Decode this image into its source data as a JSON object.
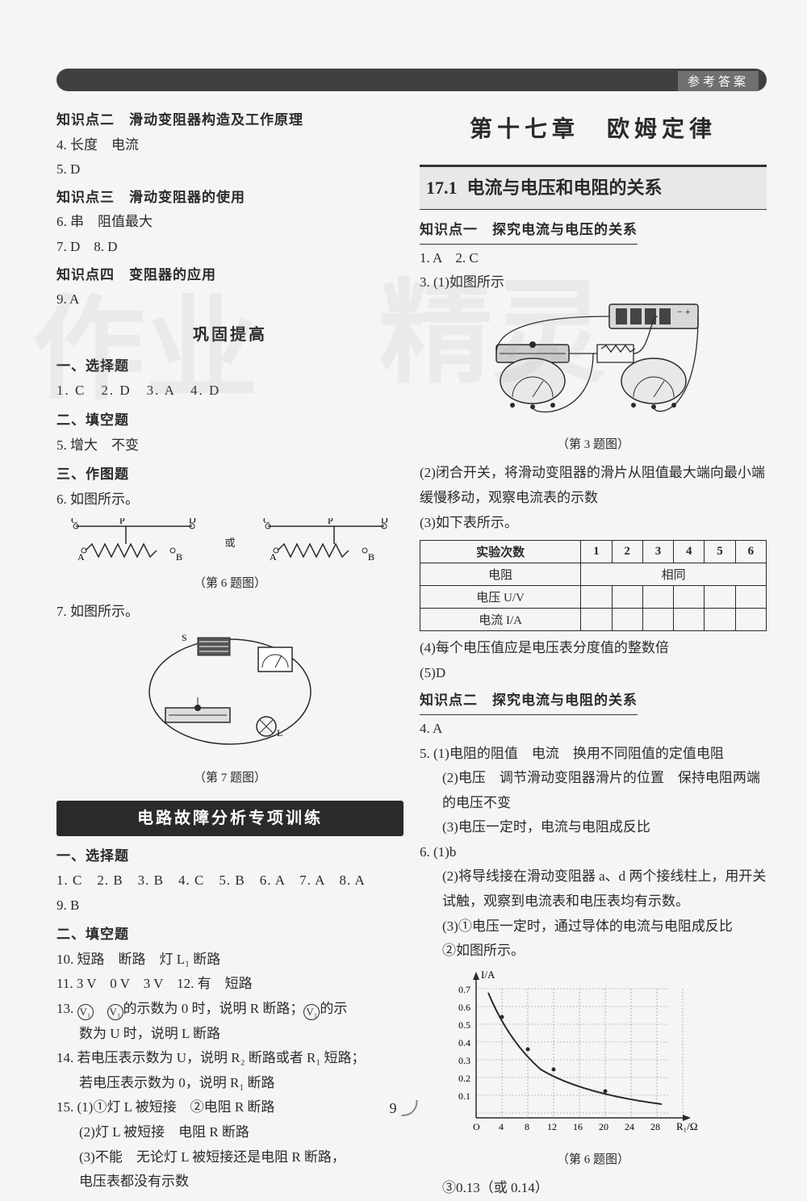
{
  "header": {
    "label": "参考答案"
  },
  "page_number": "9",
  "left": {
    "kp2": {
      "title": "知识点二　滑动变阻器构造及工作原理",
      "a4": "4. 长度　电流",
      "a5": "5. D"
    },
    "kp3": {
      "title": "知识点三　滑动变阻器的使用",
      "a6": "6. 串　阻值最大",
      "a78": "7. D　8. D"
    },
    "kp4": {
      "title": "知识点四　变阻器的应用",
      "a9": "9. A"
    },
    "gongu": "巩固提高",
    "s1": {
      "title": "一、选择题",
      "row": "1. C　2. D　3. A　4. D"
    },
    "s2": {
      "title": "二、填空题",
      "a5": "5. 增大　不变"
    },
    "s3": {
      "title": "三、作图题",
      "a6": "6. 如图所示。",
      "caption6": "（第 6 题图）",
      "a7": "7. 如图所示。",
      "caption7": "（第 7 题图）"
    },
    "circuit_labels": {
      "c": "C",
      "p": "P",
      "d": "D",
      "a": "A",
      "b": "B",
      "or": "或"
    },
    "special": {
      "banner": "电路故障分析专项训练",
      "s1t": "一、选择题",
      "s1row": "1. C　2. B　3. B　4. C　5. B　6. A　7. A　8. A",
      "s1row2": "9. B",
      "s2t": "二、填空题",
      "a10": "10. 短路　断路　灯 L₁ 断路",
      "a11": "11. 3 V　0 V　3 V　12. 有　短路",
      "a13a": "13. ",
      "a13b": "　",
      "a13c": "的示数为 0 时，说明 R 断路；",
      "a13d": "的示",
      "a13e": "数为 U 时，说明 L 断路",
      "a14a": "14. 若电压表示数为 U，说明 R₂ 断路或者 R₁ 短路；",
      "a14b": "若电压表示数为 0，说明 R₁ 断路",
      "a15a": "15. (1)①灯 L 被短接　②电阻 R 断路",
      "a15b": "(2)灯 L 被短接　电阻 R 断路",
      "a15c": "(3)不能　无论灯 L 被短接还是电阻 R 断路，",
      "a15d": "电压表都没有示数"
    }
  },
  "right": {
    "chapter": "第十七章　欧姆定律",
    "section": {
      "num": "17.1",
      "title": "电流与电压和电阻的关系"
    },
    "kp1": {
      "title": "知识点一　探究电流与电压的关系",
      "a12": "1. A　2. C",
      "a3a": "3. (1)如图所示",
      "caption3": "（第 3 题图）",
      "a3b": "(2)闭合开关，将滑动变阻器的滑片从阻值最大端向最小端缓慢移动，观察电流表的示数",
      "a3c": "(3)如下表所示。",
      "a3d": "(4)每个电压值应是电压表分度值的整数倍",
      "a3e": "(5)D"
    },
    "table": {
      "headers": [
        "实验次数",
        "1",
        "2",
        "3",
        "4",
        "5",
        "6"
      ],
      "rows": [
        {
          "label": "电阻",
          "merged": "相同"
        },
        {
          "label": "电压 U/V",
          "cells": [
            "",
            "",
            "",
            "",
            "",
            ""
          ]
        },
        {
          "label": "电流 I/A",
          "cells": [
            "",
            "",
            "",
            "",
            "",
            ""
          ]
        }
      ]
    },
    "kp2": {
      "title": "知识点二　探究电流与电阻的关系",
      "a4": "4. A",
      "a5a": "5. (1)电阻的阻值　电流　换用不同阻值的定值电阻",
      "a5b": "(2)电压　调节滑动变阻器滑片的位置　保持电阻两端的电压不变",
      "a5c": "(3)电压一定时，电流与电阻成反比",
      "a6a": "6. (1)b",
      "a6b": "(2)将导线接在滑动变阻器 a、d 两个接线柱上，用开关试触，观察到电流表和电压表均有示数。",
      "a6c": "(3)①电压一定时，通过导体的电流与电阻成反比",
      "a6d": "②如图所示。",
      "caption6": "（第 6 题图）",
      "a6e": "③0.13（或 0.14）"
    },
    "graph": {
      "ylabel": "I/A",
      "xlabel": "R₁/Ω",
      "yticks": [
        "0.7",
        "0.6",
        "0.5",
        "0.4",
        "0.3",
        "0.2",
        "0.1"
      ],
      "xticks": [
        "O",
        "4",
        "8",
        "12",
        "16",
        "20",
        "24",
        "28"
      ],
      "grid_color": "#888",
      "curve_color": "#2a2a2a"
    }
  }
}
